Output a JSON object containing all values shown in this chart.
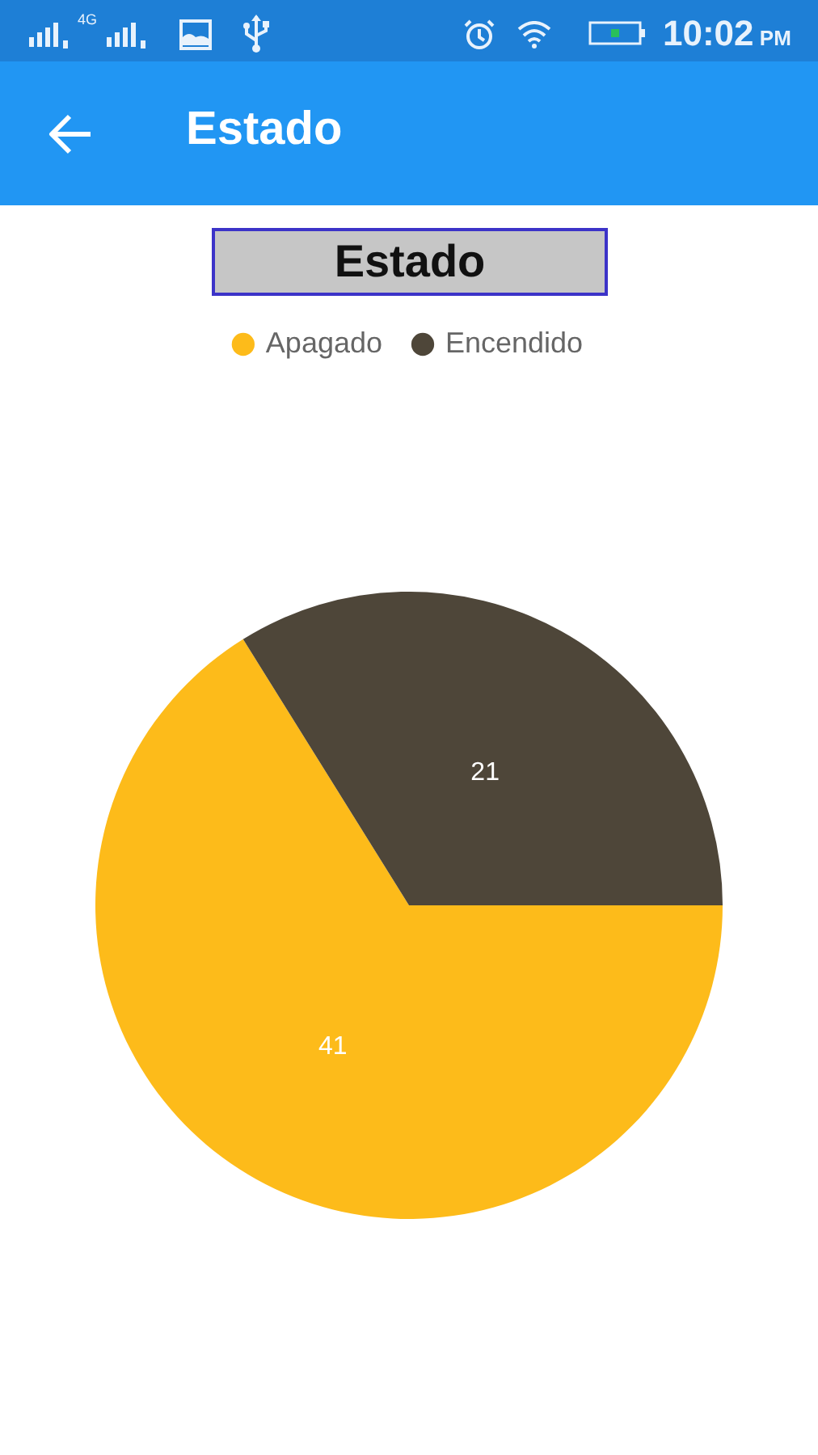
{
  "chart_data": {
    "type": "pie",
    "title": "Estado",
    "categories": [
      "Apagado",
      "Encendido"
    ],
    "values": [
      41,
      21
    ],
    "colors": [
      "#fdbb1a",
      "#4e4639"
    ],
    "data_labels": true,
    "legend": "top",
    "annotations": [
      "Estado",
      "4G",
      "10:02 PM"
    ]
  }
}
